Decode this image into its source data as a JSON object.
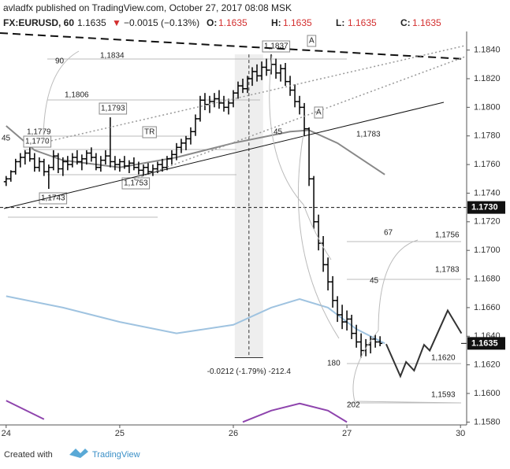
{
  "header": {
    "line": "avladfx published on TradingView.com, October 27, 2017 08:08 MSK",
    "symbol": "FX:EURUSD, 60",
    "last": "1.1635",
    "arrow": "▼",
    "change": "−0.0015 (−0.13%)",
    "ohlc": [
      {
        "label": "O:",
        "value": "1.1635"
      },
      {
        "label": "H:",
        "value": "1.1635"
      },
      {
        "label": "L:",
        "value": "1.1635"
      },
      {
        "label": "C:",
        "value": "1.1635"
      }
    ]
  },
  "chart_data": {
    "type": "ohlc",
    "color": "#000000",
    "x": [
      0,
      1,
      2,
      3,
      4,
      5,
      6,
      7,
      8,
      9,
      10,
      11,
      12,
      13,
      14,
      15,
      16,
      17,
      18,
      19,
      20,
      21,
      22,
      23,
      24,
      25,
      26,
      27,
      28,
      29,
      30,
      31,
      32,
      33,
      34,
      35,
      36,
      37,
      38,
      39,
      40,
      41,
      42,
      43,
      44,
      45,
      46,
      47,
      48,
      49,
      50,
      51,
      52,
      53,
      54,
      55,
      56,
      57,
      58,
      59,
      60,
      61,
      62,
      63,
      64,
      65,
      66,
      67,
      68,
      69,
      70,
      71,
      72,
      73,
      74,
      75,
      76,
      77,
      78,
      79
    ],
    "values": [
      [
        1.1748,
        1.1752,
        1.1745,
        1.175
      ],
      [
        1.175,
        1.1756,
        1.1748,
        1.1755
      ],
      [
        1.1755,
        1.1764,
        1.1753,
        1.1762
      ],
      [
        1.1762,
        1.1768,
        1.1758,
        1.1765
      ],
      [
        1.1765,
        1.177,
        1.176,
        1.1768
      ],
      [
        1.1768,
        1.1772,
        1.1762,
        1.1764
      ],
      [
        1.1764,
        1.1768,
        1.1755,
        1.1758
      ],
      [
        1.1758,
        1.1765,
        1.1755,
        1.1762
      ],
      [
        1.1762,
        1.1764,
        1.1752,
        1.1755
      ],
      [
        1.1755,
        1.176,
        1.1743,
        1.1758
      ],
      [
        1.1758,
        1.177,
        1.1756,
        1.1766
      ],
      [
        1.1766,
        1.1768,
        1.1754,
        1.1757
      ],
      [
        1.1757,
        1.1765,
        1.1752,
        1.1762
      ],
      [
        1.1762,
        1.1766,
        1.1756,
        1.176
      ],
      [
        1.176,
        1.1768,
        1.1758,
        1.1765
      ],
      [
        1.1765,
        1.177,
        1.176,
        1.1762
      ],
      [
        1.1762,
        1.1767,
        1.1756,
        1.1764
      ],
      [
        1.1764,
        1.177,
        1.176,
        1.1768
      ],
      [
        1.1768,
        1.1772,
        1.1762,
        1.1765
      ],
      [
        1.1765,
        1.1768,
        1.1756,
        1.1758
      ],
      [
        1.1758,
        1.1766,
        1.1755,
        1.1763
      ],
      [
        1.1763,
        1.177,
        1.176,
        1.1766
      ],
      [
        1.1766,
        1.1793,
        1.1758,
        1.1762
      ],
      [
        1.1762,
        1.1766,
        1.1756,
        1.176
      ],
      [
        1.176,
        1.1764,
        1.1755,
        1.1762
      ],
      [
        1.1762,
        1.1766,
        1.1757,
        1.1759
      ],
      [
        1.1759,
        1.1763,
        1.1754,
        1.1761
      ],
      [
        1.1761,
        1.1765,
        1.1756,
        1.1758
      ],
      [
        1.1758,
        1.1762,
        1.1753,
        1.1756
      ],
      [
        1.1756,
        1.176,
        1.1752,
        1.1758
      ],
      [
        1.1758,
        1.1761,
        1.1753,
        1.1755
      ],
      [
        1.1755,
        1.176,
        1.1752,
        1.1757
      ],
      [
        1.1757,
        1.1762,
        1.1754,
        1.176
      ],
      [
        1.176,
        1.1764,
        1.1755,
        1.1758
      ],
      [
        1.1758,
        1.1766,
        1.1756,
        1.1764
      ],
      [
        1.1764,
        1.177,
        1.176,
        1.1767
      ],
      [
        1.1767,
        1.1775,
        1.1763,
        1.1772
      ],
      [
        1.1772,
        1.1778,
        1.1768,
        1.1775
      ],
      [
        1.1775,
        1.178,
        1.177,
        1.1778
      ],
      [
        1.1778,
        1.1786,
        1.1774,
        1.1783
      ],
      [
        1.1783,
        1.1795,
        1.178,
        1.1792
      ],
      [
        1.1792,
        1.1808,
        1.179,
        1.1805
      ],
      [
        1.1805,
        1.181,
        1.1798,
        1.1802
      ],
      [
        1.1802,
        1.1808,
        1.1796,
        1.1804
      ],
      [
        1.1804,
        1.181,
        1.18,
        1.1806
      ],
      [
        1.1806,
        1.1812,
        1.1799,
        1.1803
      ],
      [
        1.1803,
        1.1808,
        1.1797,
        1.18
      ],
      [
        1.18,
        1.1806,
        1.1795,
        1.1803
      ],
      [
        1.1803,
        1.1812,
        1.18,
        1.181
      ],
      [
        1.181,
        1.1818,
        1.1806,
        1.1815
      ],
      [
        1.1815,
        1.182,
        1.181,
        1.1813
      ],
      [
        1.1813,
        1.1822,
        1.181,
        1.182
      ],
      [
        1.182,
        1.1828,
        1.1815,
        1.1825
      ],
      [
        1.1825,
        1.183,
        1.1818,
        1.1822
      ],
      [
        1.1822,
        1.1832,
        1.1819,
        1.1828
      ],
      [
        1.1828,
        1.1834,
        1.1822,
        1.1826
      ],
      [
        1.1826,
        1.1837,
        1.1823,
        1.183
      ],
      [
        1.183,
        1.1834,
        1.182,
        1.1824
      ],
      [
        1.1824,
        1.183,
        1.1818,
        1.1827
      ],
      [
        1.1827,
        1.1831,
        1.1815,
        1.1818
      ],
      [
        1.1818,
        1.1822,
        1.1808,
        1.1812
      ],
      [
        1.1812,
        1.1816,
        1.18,
        1.1804
      ],
      [
        1.1804,
        1.1808,
        1.1795,
        1.18
      ],
      [
        1.18,
        1.1803,
        1.178,
        1.1785
      ],
      [
        1.1785,
        1.1786,
        1.1745,
        1.175
      ],
      [
        1.175,
        1.1752,
        1.1715,
        1.172
      ],
      [
        1.172,
        1.1725,
        1.17,
        1.1705
      ],
      [
        1.1705,
        1.171,
        1.1685,
        1.169
      ],
      [
        1.169,
        1.1695,
        1.1672,
        1.1678
      ],
      [
        1.1678,
        1.1682,
        1.166,
        1.1665
      ],
      [
        1.1665,
        1.1668,
        1.165,
        1.1655
      ],
      [
        1.1655,
        1.1662,
        1.1645,
        1.165
      ],
      [
        1.165,
        1.1658,
        1.1644,
        1.1652
      ],
      [
        1.1652,
        1.1655,
        1.1638,
        1.1642
      ],
      [
        1.1642,
        1.1648,
        1.1632,
        1.1636
      ],
      [
        1.1636,
        1.1642,
        1.1625,
        1.163
      ],
      [
        1.163,
        1.1638,
        1.1626,
        1.1634
      ],
      [
        1.1634,
        1.164,
        1.1628,
        1.1638
      ],
      [
        1.1638,
        1.1641,
        1.1632,
        1.1636
      ],
      [
        1.1636,
        1.164,
        1.1633,
        1.1635
      ]
    ],
    "lines": [
      {
        "color": "#9fc3e0",
        "x": [
          0,
          12,
          24,
          36,
          48,
          56,
          62,
          68,
          74,
          80
        ],
        "values": [
          1.1668,
          1.166,
          1.165,
          1.1642,
          1.1648,
          1.166,
          1.1666,
          1.166,
          1.1645,
          1.1635
        ]
      },
      {
        "color": "#888888",
        "x": [
          0,
          6,
          12,
          24,
          36,
          48,
          60,
          64,
          70,
          80
        ],
        "values": [
          1.1787,
          1.177,
          1.1763,
          1.1758,
          1.1765,
          1.1775,
          1.1783,
          1.1784,
          1.1775,
          1.1753
        ]
      },
      {
        "color": "#8e44ad",
        "x": [
          0,
          8,
          16,
          50,
          56,
          62,
          68,
          72
        ],
        "values": [
          1.1595,
          1.1582,
          null,
          1.158,
          1.1588,
          1.1593,
          1.1588,
          1.158
        ]
      }
    ],
    "projection": {
      "color": "#333333",
      "x": [
        80.3,
        83.3,
        84.5,
        86.2,
        88.3,
        89.5,
        93.3,
        96.2
      ],
      "values": [
        1.16345,
        1.1612,
        1.1622,
        1.1616,
        1.1634,
        1.163,
        1.1658,
        1.1642
      ]
    },
    "measure": {
      "x": 51.3,
      "from": 1.1837,
      "to": 1.1625,
      "label": "-0.0212 (-1.79%) -212.4"
    },
    "hline": {
      "value": 1.173,
      "label": "1.1730"
    },
    "last_price": {
      "value": 1.1635,
      "label": "1.1635"
    },
    "annotations": [
      "90",
      "1,1834",
      "1,1806",
      "1,1793",
      "1,1779",
      "1,1770",
      "45",
      "TR",
      "1,1753",
      "1,1743",
      "1,1837",
      "A",
      "A",
      "45",
      "1,1783",
      "67",
      "1,1756",
      "45",
      "1,1783",
      "1,1620",
      "180",
      "202",
      "1,1593"
    ],
    "xlim": [
      -1.3,
      97.3
    ],
    "ylim": [
      1.1578,
      1.1853
    ],
    "xticks": [
      {
        "value": 0,
        "label": "24"
      },
      {
        "value": 24,
        "label": "25"
      },
      {
        "value": 48,
        "label": "26"
      },
      {
        "value": 72,
        "label": "27"
      },
      {
        "value": 96,
        "label": "30"
      }
    ],
    "yticks": [
      {
        "value": 1.158,
        "label": "1.1580"
      },
      {
        "value": 1.16,
        "label": "1.1600"
      },
      {
        "value": 1.162,
        "label": "1.1620"
      },
      {
        "value": 1.164,
        "label": "1.1640"
      },
      {
        "value": 1.166,
        "label": "1.1660"
      },
      {
        "value": 1.168,
        "label": "1.1680"
      },
      {
        "value": 1.17,
        "label": "1.1700"
      },
      {
        "value": 1.172,
        "label": "1.1720"
      },
      {
        "value": 1.174,
        "label": "1.1740"
      },
      {
        "value": 1.176,
        "label": "1.1760"
      },
      {
        "value": 1.178,
        "label": "1.1780"
      },
      {
        "value": 1.18,
        "label": "1.1800"
      },
      {
        "value": 1.182,
        "label": "1.1820"
      },
      {
        "value": 1.184,
        "label": "1.1840"
      }
    ]
  },
  "footer": {
    "created": "Created with",
    "brand": "TradingView"
  }
}
